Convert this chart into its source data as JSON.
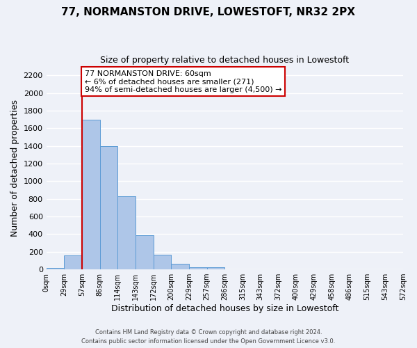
{
  "title": "77, NORMANSTON DRIVE, LOWESTOFT, NR32 2PX",
  "subtitle": "Size of property relative to detached houses in Lowestoft",
  "xlabel": "Distribution of detached houses by size in Lowestoft",
  "ylabel": "Number of detached properties",
  "bin_labels": [
    "0sqm",
    "29sqm",
    "57sqm",
    "86sqm",
    "114sqm",
    "143sqm",
    "172sqm",
    "200sqm",
    "229sqm",
    "257sqm",
    "286sqm",
    "315sqm",
    "343sqm",
    "372sqm",
    "400sqm",
    "429sqm",
    "458sqm",
    "486sqm",
    "515sqm",
    "543sqm",
    "572sqm"
  ],
  "bar_heights": [
    15,
    160,
    1700,
    1400,
    830,
    390,
    165,
    60,
    25,
    25,
    0,
    0,
    0,
    0,
    0,
    0,
    0,
    0,
    0,
    0
  ],
  "bar_color": "#aec6e8",
  "bar_edge_color": "#5b9bd5",
  "property_line_x": 2,
  "property_line_color": "#cc0000",
  "annotation_line1": "77 NORMANSTON DRIVE: 60sqm",
  "annotation_line2": "← 6% of detached houses are smaller (271)",
  "annotation_line3": "94% of semi-detached houses are larger (4,500) →",
  "annotation_box_color": "#ffffff",
  "annotation_border_color": "#cc0000",
  "ylim": [
    0,
    2300
  ],
  "yticks": [
    0,
    200,
    400,
    600,
    800,
    1000,
    1200,
    1400,
    1600,
    1800,
    2000,
    2200
  ],
  "footer_line1": "Contains HM Land Registry data © Crown copyright and database right 2024.",
  "footer_line2": "Contains public sector information licensed under the Open Government Licence v3.0.",
  "background_color": "#eef1f8",
  "grid_color": "#ffffff"
}
